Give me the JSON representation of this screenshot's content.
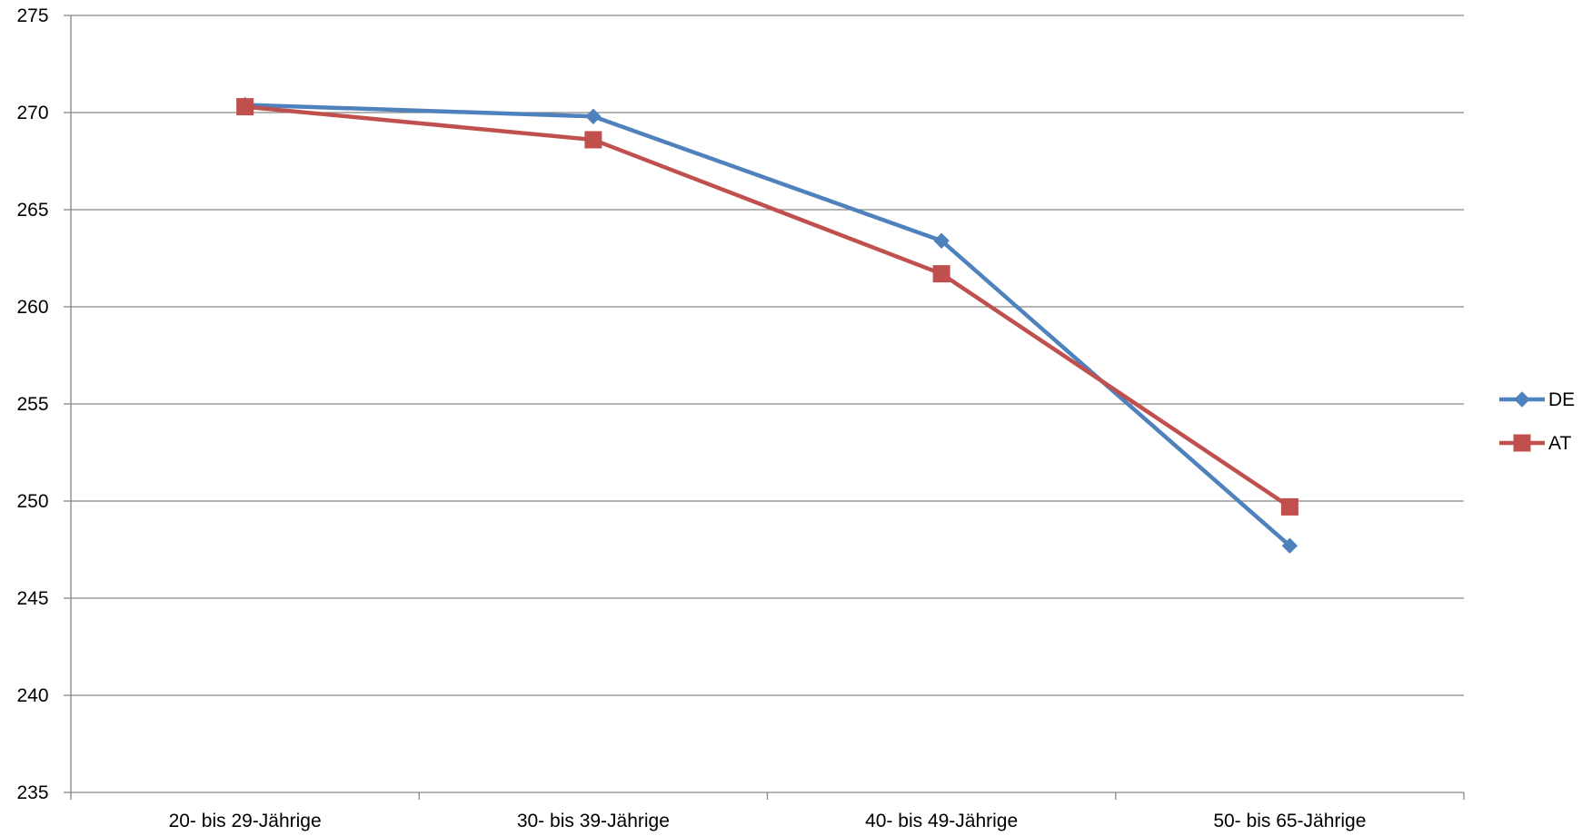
{
  "chart_data": {
    "type": "line",
    "title": "",
    "xlabel": "",
    "ylabel": "",
    "categories": [
      "20- bis 29-Jährige",
      "30- bis 39-Jährige",
      "40- bis 49-Jährige",
      "50- bis 65-Jährige"
    ],
    "ylim": [
      235,
      275
    ],
    "yticks": [
      235,
      240,
      245,
      250,
      255,
      260,
      265,
      270,
      275
    ],
    "grid": true,
    "legend_position": "right",
    "series": [
      {
        "name": "DE",
        "values": [
          270.4,
          269.8,
          263.4,
          247.7
        ],
        "color": "#4F81BD",
        "marker": "diamond"
      },
      {
        "name": "AT",
        "values": [
          270.3,
          268.6,
          261.7,
          249.7
        ],
        "color": "#C0504D",
        "marker": "square"
      }
    ]
  }
}
